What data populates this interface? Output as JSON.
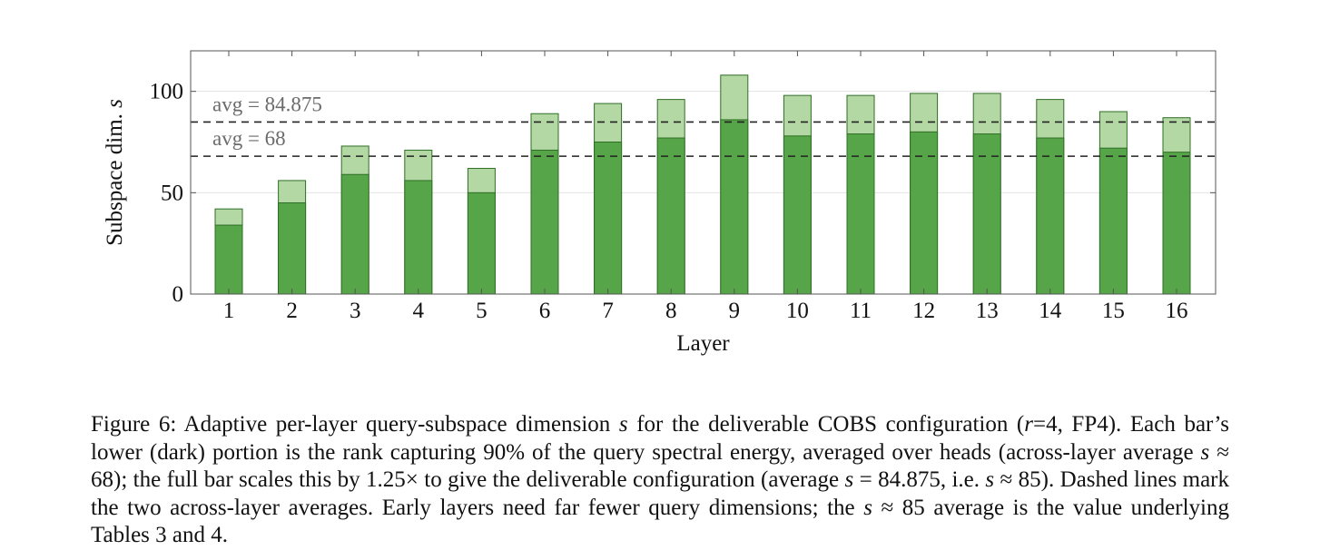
{
  "chart_data": {
    "type": "bar",
    "categories": [
      "1",
      "2",
      "3",
      "4",
      "5",
      "6",
      "7",
      "8",
      "9",
      "10",
      "11",
      "12",
      "13",
      "14",
      "15",
      "16"
    ],
    "series": [
      {
        "values": [
          34,
          45,
          59,
          56,
          50,
          71,
          75,
          77,
          86,
          78,
          79,
          80,
          79,
          77,
          72,
          70
        ],
        "color": "#57a549"
      },
      {
        "values": [
          42,
          56,
          73,
          71,
          62,
          89,
          94,
          96,
          108,
          98,
          98,
          99,
          99,
          96,
          90,
          87
        ],
        "color": "#b3d8a4"
      }
    ],
    "xlabel": "Layer",
    "ylabel": "Subspace dim. s",
    "ylim": [
      0,
      120
    ],
    "yticks": [
      "0",
      "50",
      "100"
    ],
    "grid": true,
    "reference_lines": [
      {
        "value": 84.875,
        "label": "avg = 84.875"
      },
      {
        "value": 68,
        "label": "avg = 68"
      }
    ],
    "colors": {
      "dark_fill": "#57a549",
      "light_fill": "#b3d8a4",
      "bar_stroke": "#2f6e26",
      "axis": "#555555",
      "grid": "#e3e3e3",
      "avg_label": "#6b6b6b"
    }
  },
  "caption": {
    "p1": "Figure 6: Adaptive per-layer query-subspace dimension ",
    "s1": "s",
    "p2": " for the deliverable COBS configuration (",
    "r": "r",
    "p3": "=4, FP4). Each bar’s lower (dark) portion is the rank capturing 90% of the query spectral energy, averaged over heads (across-layer average ",
    "s2": "s",
    "p4": " ≈ 68); the full bar scales this by 1.25× to give the deliverable configuration (average ",
    "s3": "s",
    "p5": " = 84.875, i.e. ",
    "s4": "s",
    "p6": " ≈ 85). Dashed lines mark the two across-layer averages. Early layers need far fewer query dimensions; the ",
    "s5": "s",
    "p7": " ≈ 85 average is the value underlying Tables 3 and 4."
  }
}
